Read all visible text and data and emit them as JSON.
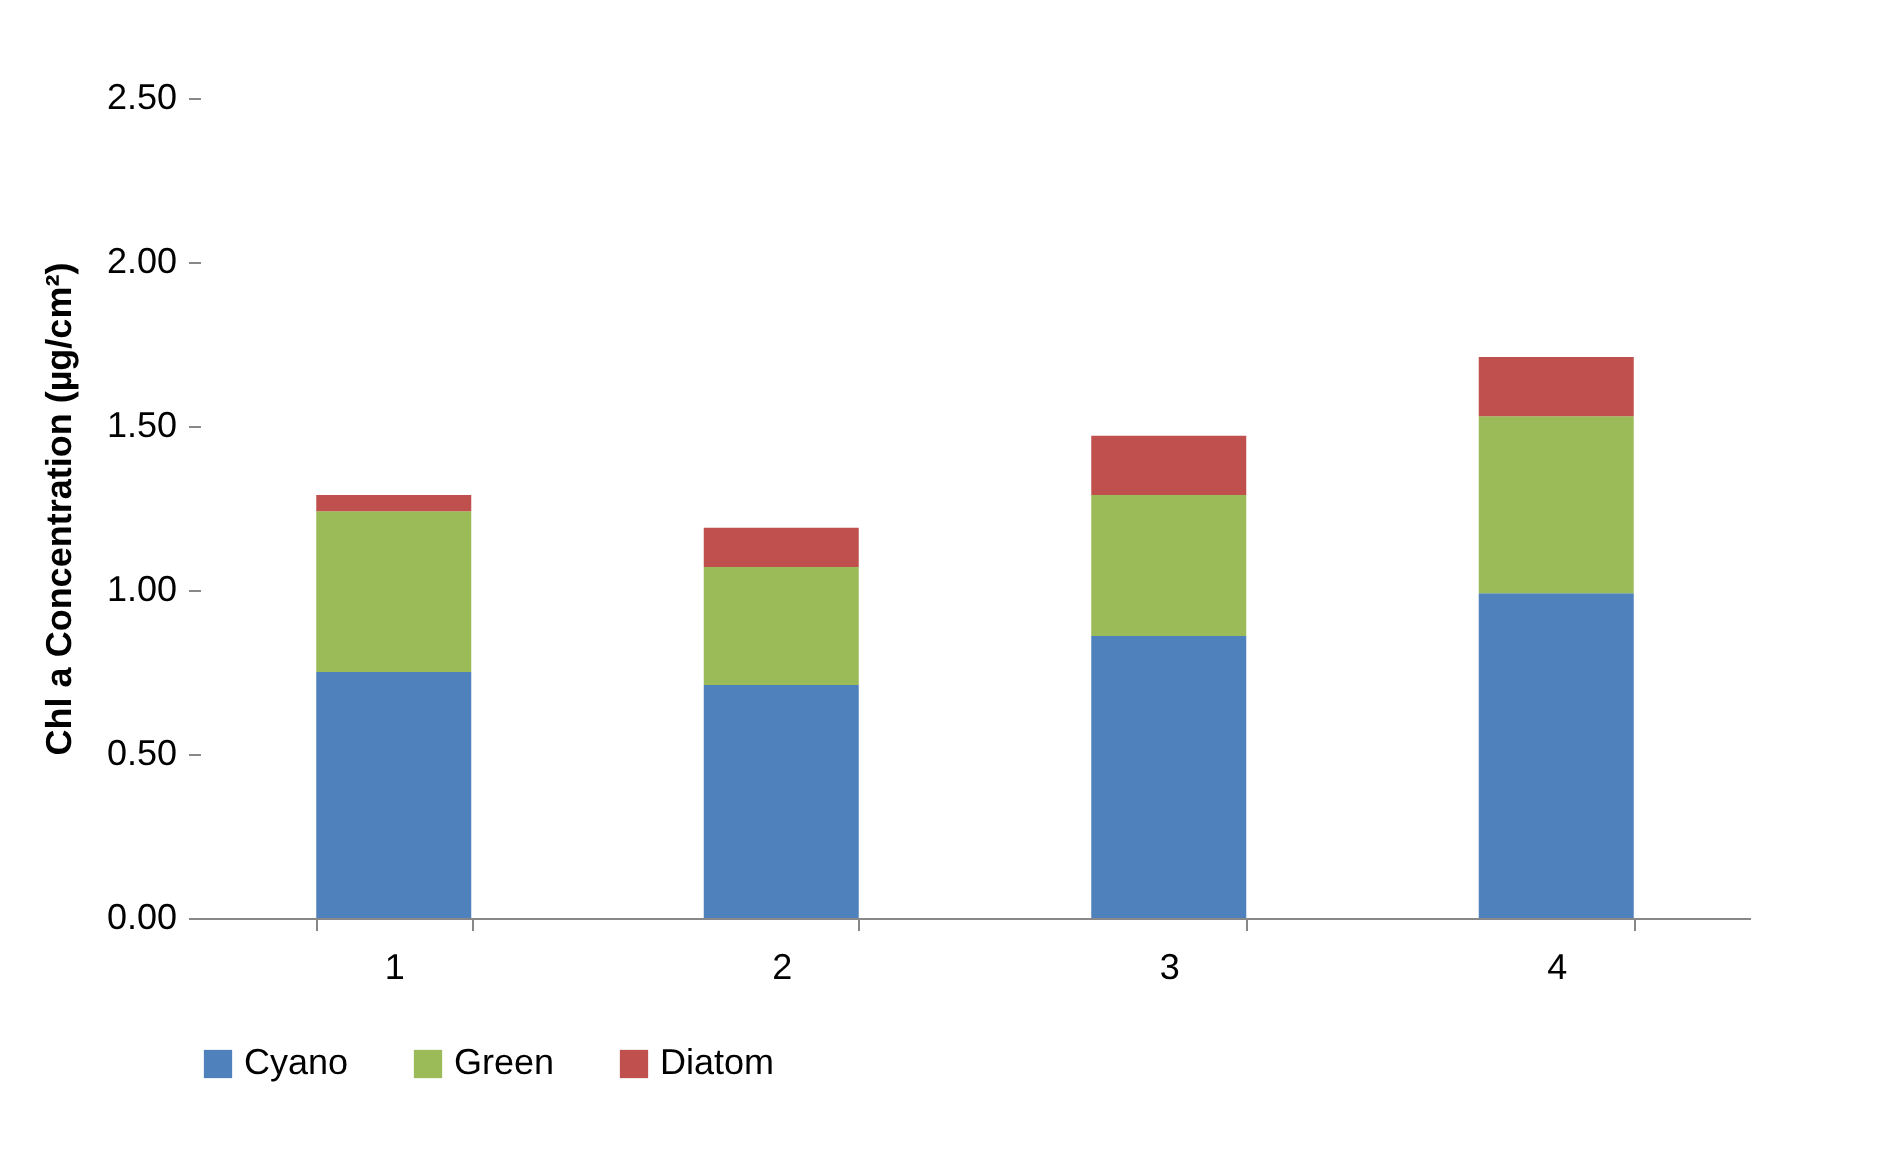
{
  "chart_data": {
    "type": "bar",
    "stacked": true,
    "ylabel": "Chl a Concentration (µg/cm²)",
    "categories": [
      "1",
      "2",
      "3",
      "4"
    ],
    "series": [
      {
        "name": "Cyano",
        "color": "#4f81bd",
        "values": [
          0.75,
          0.71,
          0.86,
          0.99
        ]
      },
      {
        "name": "Green",
        "color": "#9bbb59",
        "values": [
          0.49,
          0.36,
          0.43,
          0.54
        ]
      },
      {
        "name": "Diatom",
        "color": "#c0504d",
        "values": [
          0.05,
          0.12,
          0.18,
          0.18
        ]
      }
    ],
    "ylim": [
      0,
      2.5
    ],
    "yticks": [
      {
        "value": 0,
        "label": "0.00"
      },
      {
        "value": 0.5,
        "label": "0.50"
      },
      {
        "value": 1,
        "label": "1.00"
      },
      {
        "value": 1.5,
        "label": "1.50"
      },
      {
        "value": 2,
        "label": "2.00"
      },
      {
        "value": 2.5,
        "label": "2.50"
      }
    ],
    "grid": false,
    "legend": "bottom"
  }
}
